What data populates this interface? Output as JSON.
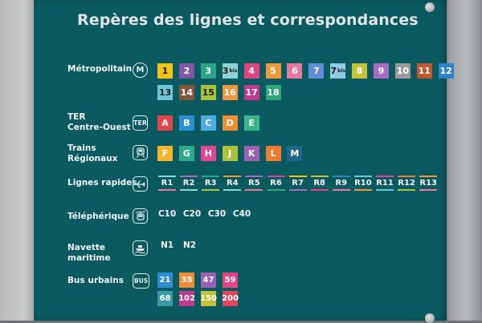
{
  "title": "Repères des lignes et correspondances",
  "categories": {
    "metro": {
      "label": "Métropolitain",
      "icon_text": "M",
      "lines": [
        {
          "label": "1",
          "bg": "#f2c217",
          "fg": "#1d1d1d"
        },
        {
          "label": "2",
          "bg": "#7f56a8",
          "fg": "#ffffff"
        },
        {
          "label": "3",
          "bg": "#2aa58a",
          "fg": "#ffffff"
        },
        {
          "label": "3bis",
          "bg": "#8fd4cf",
          "fg": "#1d1d1d"
        },
        {
          "label": "4",
          "bg": "#e0457f",
          "fg": "#ffffff"
        },
        {
          "label": "5",
          "bg": "#ef9a3a",
          "fg": "#ffffff"
        },
        {
          "label": "6",
          "bg": "#e8799e",
          "fg": "#ffffff"
        },
        {
          "label": "7",
          "bg": "#5f8ed6",
          "fg": "#ffffff"
        },
        {
          "label": "7bis",
          "bg": "#8fcbe2",
          "fg": "#1d1d1d"
        },
        {
          "label": "8",
          "bg": "#c3c23b",
          "fg": "#ffffff"
        },
        {
          "label": "9",
          "bg": "#a66bc4",
          "fg": "#ffffff"
        },
        {
          "label": "10",
          "bg": "#9a9a9a",
          "fg": "#ffffff"
        },
        {
          "label": "11",
          "bg": "#c0562b",
          "fg": "#ffffff"
        },
        {
          "label": "12",
          "bg": "#2f84c9",
          "fg": "#ffffff"
        },
        {
          "label": "13",
          "bg": "#6ec7d6",
          "fg": "#1d1d1d"
        },
        {
          "label": "14",
          "bg": "#84563a",
          "fg": "#ffffff"
        },
        {
          "label": "15",
          "bg": "#a9c33a",
          "fg": "#1d1d1d"
        },
        {
          "label": "16",
          "bg": "#f0973e",
          "fg": "#ffffff"
        },
        {
          "label": "17",
          "bg": "#c13a8e",
          "fg": "#ffffff"
        },
        {
          "label": "18",
          "bg": "#2fa77d",
          "fg": "#ffffff"
        }
      ]
    },
    "ter": {
      "label_lines": [
        "TER",
        "Centre-Ouest"
      ],
      "icon_text": "TER",
      "lines": [
        {
          "label": "A",
          "bg": "#e54447",
          "fg": "#ffffff"
        },
        {
          "label": "B",
          "bg": "#2b8ed0",
          "fg": "#ffffff"
        },
        {
          "label": "C",
          "bg": "#4dabe1",
          "fg": "#ffffff"
        },
        {
          "label": "D",
          "bg": "#f08d35",
          "fg": "#ffffff"
        },
        {
          "label": "E",
          "bg": "#39b48d",
          "fg": "#ffffff"
        }
      ]
    },
    "regional": {
      "label_lines": [
        "Trains",
        "Régionaux"
      ],
      "icon": "train-icon",
      "lines": [
        {
          "label": "F",
          "bg": "#f5b42a",
          "fg": "#ffffff"
        },
        {
          "label": "G",
          "bg": "#2eac8a",
          "fg": "#ffffff"
        },
        {
          "label": "H",
          "bg": "#e24894",
          "fg": "#ffffff"
        },
        {
          "label": "J",
          "bg": "#a9c33a",
          "fg": "#ffffff"
        },
        {
          "label": "K",
          "bg": "#9a60b5",
          "fg": "#ffffff"
        },
        {
          "label": "L",
          "bg": "#f07b2e",
          "fg": "#ffffff"
        },
        {
          "label": "M",
          "bg": "#20668c",
          "fg": "#ffffff"
        }
      ]
    },
    "rapid": {
      "label": "Lignes rapides",
      "icon": "airplane-icon",
      "lines": [
        {
          "label": "R1",
          "top": "#8fd4cf",
          "bottom": "#e8799e"
        },
        {
          "label": "R2",
          "top": "#a66bc4",
          "bottom": "#8fd4cf"
        },
        {
          "label": "R3",
          "top": "#2aa58a",
          "bottom": "#a9c33a"
        },
        {
          "label": "R4",
          "top": "#ef9a3a",
          "bottom": "#8fd4cf"
        },
        {
          "label": "R5",
          "top": "#a66bc4",
          "bottom": "#e8799e"
        },
        {
          "label": "R6",
          "top": "#e0457f",
          "bottom": "#2fa77d"
        },
        {
          "label": "R7",
          "top": "#f2c217",
          "bottom": "#a66bc4"
        },
        {
          "label": "R8",
          "top": "#c3c23b",
          "bottom": "#e0457f"
        },
        {
          "label": "R9",
          "top": "#2f84c9",
          "bottom": "#e8799e"
        },
        {
          "label": "R10",
          "top": "#6ec7d6",
          "bottom": "#f0973e"
        },
        {
          "label": "R11",
          "top": "#e24894",
          "bottom": "#6ec7d6"
        },
        {
          "label": "R12",
          "top": "#f07b2e",
          "bottom": "#a9c33a"
        },
        {
          "label": "R13",
          "top": "#ef9a3a",
          "bottom": "#e8799e"
        }
      ]
    },
    "cable": {
      "label": "Téléphérique",
      "icon": "cable-car-icon",
      "lines": [
        {
          "label": "C10",
          "top": "#a66bc4",
          "bottom": "#8fd4cf"
        },
        {
          "label": "C20",
          "top": "#a9c33a",
          "bottom": "#e8799e"
        },
        {
          "label": "C30",
          "top": "#f07b2e",
          "bottom": "#2f84c9"
        },
        {
          "label": "C40",
          "top": "#e24894",
          "bottom": "#6ec7d6"
        }
      ]
    },
    "shuttle": {
      "label_lines": [
        "Navette",
        "maritime"
      ],
      "icon": "boat-icon",
      "lines": [
        {
          "label": "N1",
          "top": "#6ec7d6",
          "bottom": "#a66bc4"
        },
        {
          "label": "N2",
          "top": "#a9c33a",
          "bottom": "#e24894"
        }
      ]
    },
    "bus": {
      "label": "Bus urbains",
      "icon_text": "BUS",
      "lines": [
        {
          "label": "21",
          "bg": "#2b8ed0",
          "fg": "#ffffff"
        },
        {
          "label": "35",
          "bg": "#f08d35",
          "fg": "#ffffff"
        },
        {
          "label": "47",
          "bg": "#9a60b5",
          "fg": "#ffffff"
        },
        {
          "label": "59",
          "bg": "#e0457f",
          "fg": "#ffffff"
        },
        {
          "label": "68",
          "bg": "#3a9aa8",
          "fg": "#ffffff"
        },
        {
          "label": "102",
          "bg": "#c13a8e",
          "fg": "#ffffff"
        },
        {
          "label": "150",
          "bg": "#c3c23b",
          "fg": "#ffffff"
        },
        {
          "label": "200",
          "bg": "#e5445f",
          "fg": "#ffffff"
        }
      ]
    }
  }
}
